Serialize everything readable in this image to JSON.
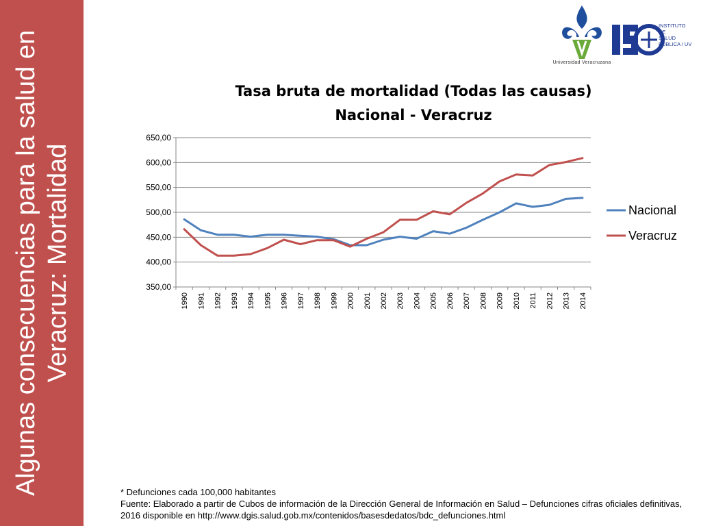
{
  "slide": {
    "side_title": "Algunas consecuencias para la salud en Veracruz: Mortalidad",
    "note": "* Defunciones cada 100,000 habitantes",
    "source": "Fuente: Elaborado a partir de Cubos de información de la Dirección General de Información en Salud – Defunciones cifras oficiales definitivas, 2016 disponible en  http://www.dgis.salud.gob.mx/contenidos/basesdedatos/bdc_defunciones.html",
    "logo_uv_text": "Universidad Veracruzana",
    "logo_isp_lines": [
      "INSTITUTO",
      "DE",
      "SALUD",
      "PÚBLICA / UV"
    ]
  },
  "colors": {
    "side_bar": "#c0504d",
    "nacional": "#4f81bd",
    "veracruz": "#c0504d",
    "gridline": "#868686",
    "uv_blue": "#1f4e9c",
    "uv_green": "#6aaa3a",
    "isp_blue": "#1f3a93"
  },
  "chart_data": {
    "type": "line",
    "title": "Tasa bruta de mortalidad (Todas las causas)",
    "subtitle": "Nacional - Veracruz",
    "xlabel": "",
    "ylabel": "",
    "ylim": [
      350,
      650
    ],
    "y_ticks": [
      "650,00",
      "600,00",
      "550,00",
      "500,00",
      "450,00",
      "400,00",
      "350,00"
    ],
    "y_tick_values": [
      650,
      600,
      550,
      500,
      450,
      400,
      350
    ],
    "grid": true,
    "legend": "right",
    "x": [
      "1990",
      "1991",
      "1992",
      "1993",
      "1994",
      "1995",
      "1996",
      "1997",
      "1998",
      "1999",
      "2000",
      "2001",
      "2002",
      "2003",
      "2004",
      "2005",
      "2006",
      "2007",
      "2008",
      "2009",
      "2010",
      "2011",
      "2012",
      "2013",
      "2014"
    ],
    "series": [
      {
        "name": "Nacional",
        "values": [
          486,
          464,
          455,
          455,
          451,
          455,
          455,
          453,
          451,
          446,
          434,
          434,
          445,
          451,
          447,
          462,
          457,
          469,
          485,
          500,
          518,
          511,
          515,
          527,
          529
        ]
      },
      {
        "name": "Veracruz",
        "values": [
          466,
          434,
          413,
          413,
          416,
          428,
          445,
          436,
          444,
          444,
          431,
          447,
          460,
          485,
          485,
          502,
          496,
          519,
          538,
          562,
          576,
          574,
          595,
          601,
          609
        ]
      }
    ]
  }
}
